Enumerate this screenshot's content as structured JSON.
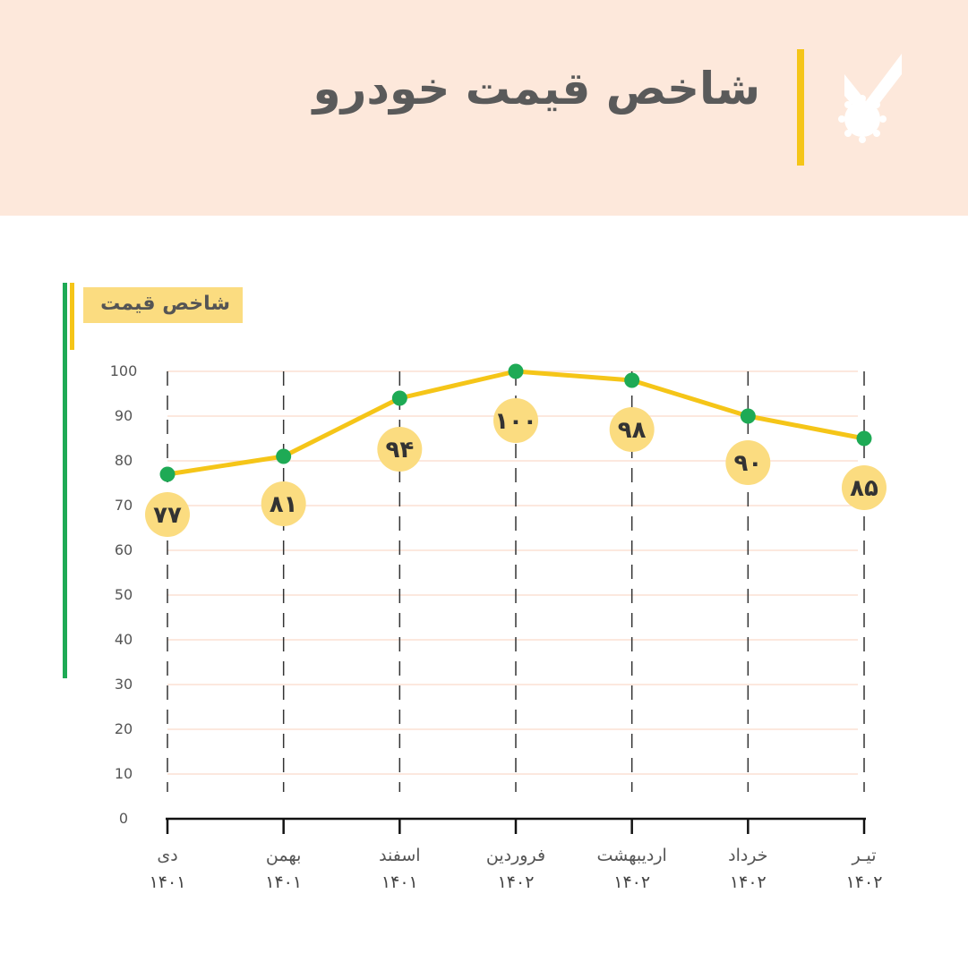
{
  "header": {
    "title": "شاخص قیمت خودرو"
  },
  "colors": {
    "header_bg": "#fde8db",
    "accent_yellow": "#f5c518",
    "label_circle": "#fbdc80",
    "point_green": "#1eaa55",
    "text_gray": "#5a5a5a"
  },
  "icons": {
    "logo": "check-gear-logo-icon"
  },
  "chart_data": {
    "type": "line",
    "y_axis_title": "شاخص قیمت",
    "categories": [
      {
        "month": "دی",
        "year": "۱۴۰۱"
      },
      {
        "month": "بهمن",
        "year": "۱۴۰۱"
      },
      {
        "month": "اسفند",
        "year": "۱۴۰۱"
      },
      {
        "month": "فروردین",
        "year": "۱۴۰۲"
      },
      {
        "month": "اردیبهشت",
        "year": "۱۴۰۲"
      },
      {
        "month": "خرداد",
        "year": "۱۴۰۲"
      },
      {
        "month": "تیـر",
        "year": "۱۴۰۲"
      }
    ],
    "values": [
      77,
      81,
      94,
      100,
      98,
      90,
      85
    ],
    "data_labels": [
      "۷۷",
      "۸۱",
      "۹۴",
      "۱۰۰",
      "۹۸",
      "۹۰",
      "۸۵"
    ],
    "y_ticks": [
      0,
      10,
      20,
      30,
      40,
      50,
      60,
      70,
      80,
      90,
      100
    ],
    "y_tick_labels": [
      "0",
      "10",
      "20",
      "30",
      "40",
      "50",
      "60",
      "70",
      "80",
      "90",
      "100"
    ],
    "ylim": [
      0,
      100
    ],
    "grid": true,
    "legend": "none"
  }
}
